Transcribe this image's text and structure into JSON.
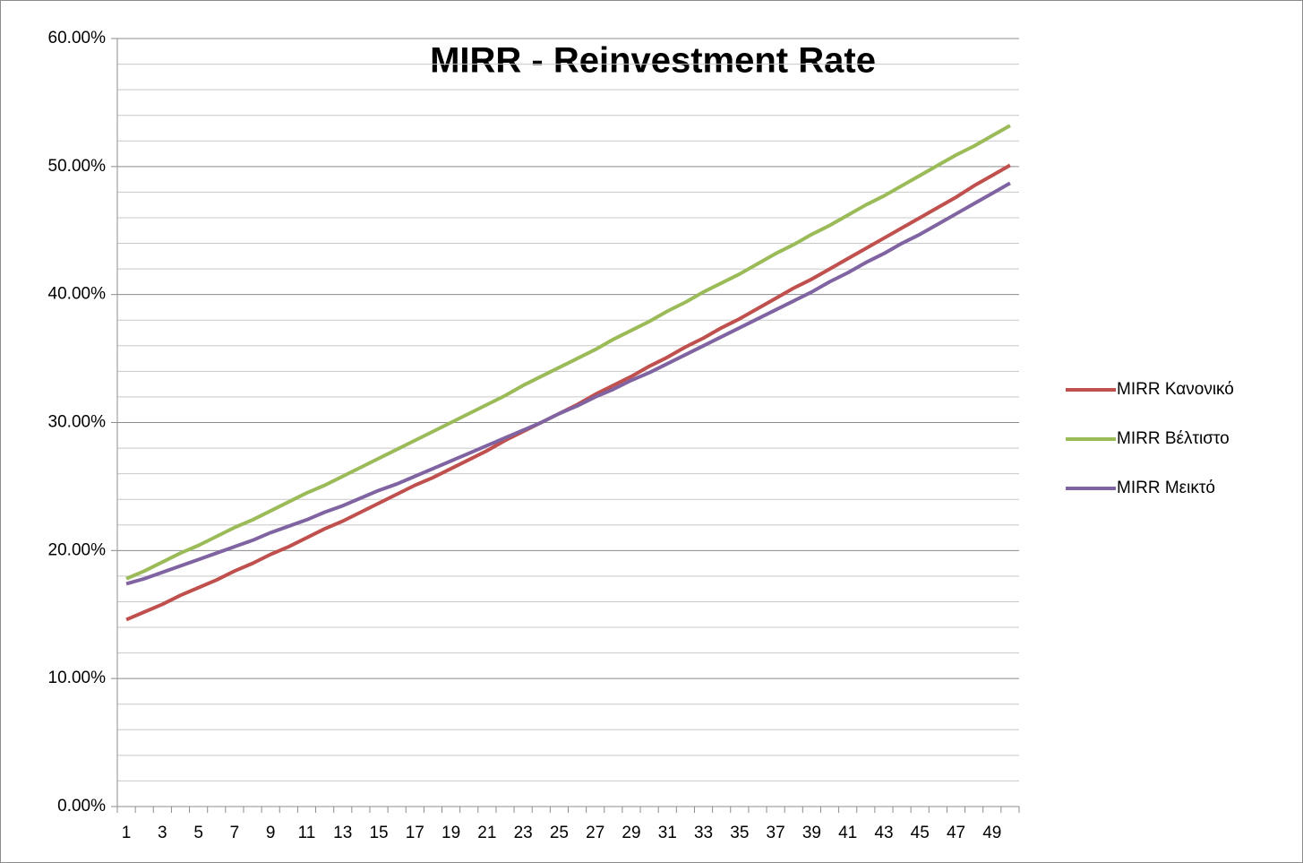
{
  "chart_data": {
    "type": "line",
    "title": "MIRR - Reinvestment Rate",
    "categories": [
      1,
      null,
      3,
      null,
      5,
      null,
      7,
      null,
      9,
      null,
      11,
      null,
      13,
      null,
      15,
      null,
      17,
      null,
      19,
      null,
      21,
      null,
      23,
      null,
      25,
      null,
      27,
      null,
      29,
      null,
      31,
      null,
      33,
      null,
      35,
      null,
      37,
      null,
      39,
      null,
      41,
      null,
      43,
      null,
      45,
      null,
      47,
      null,
      49,
      null
    ],
    "series": [
      {
        "name": "MIRR Κανονικό",
        "color": "#c0504d",
        "values": [
          14.6,
          15.2,
          15.8,
          16.5,
          17.1,
          17.7,
          18.4,
          19.0,
          19.7,
          20.3,
          21.0,
          21.7,
          22.3,
          23.0,
          23.7,
          24.4,
          25.1,
          25.7,
          26.4,
          27.1,
          27.8,
          28.6,
          29.3,
          30.0,
          30.7,
          31.4,
          32.2,
          32.9,
          33.6,
          34.4,
          35.1,
          35.9,
          36.6,
          37.4,
          38.1,
          38.9,
          39.7,
          40.5,
          41.2,
          42.0,
          42.8,
          43.6,
          44.4,
          45.2,
          46.0,
          46.8,
          47.6,
          48.5,
          49.3,
          50.1
        ]
      },
      {
        "name": "MIRR Βέλτιστο",
        "color": "#9bbb59",
        "values": [
          17.8,
          18.4,
          19.1,
          19.8,
          20.4,
          21.1,
          21.8,
          22.4,
          23.1,
          23.8,
          24.5,
          25.1,
          25.8,
          26.5,
          27.2,
          27.9,
          28.6,
          29.3,
          30.0,
          30.7,
          31.4,
          32.1,
          32.9,
          33.6,
          34.3,
          35.0,
          35.7,
          36.5,
          37.2,
          37.9,
          38.7,
          39.4,
          40.2,
          40.9,
          41.6,
          42.4,
          43.2,
          43.9,
          44.7,
          45.4,
          46.2,
          47.0,
          47.7,
          48.5,
          49.3,
          50.1,
          50.9,
          51.6,
          52.4,
          53.2
        ]
      },
      {
        "name": "MIRR Μεικτό",
        "color": "#8064a2",
        "values": [
          17.4,
          17.8,
          18.3,
          18.8,
          19.3,
          19.8,
          20.3,
          20.8,
          21.4,
          21.9,
          22.4,
          23.0,
          23.5,
          24.1,
          24.7,
          25.2,
          25.8,
          26.4,
          27.0,
          27.6,
          28.2,
          28.8,
          29.4,
          30.0,
          30.7,
          31.3,
          32.0,
          32.6,
          33.3,
          33.9,
          34.6,
          35.3,
          36.0,
          36.7,
          37.4,
          38.1,
          38.8,
          39.5,
          40.2,
          41.0,
          41.7,
          42.5,
          43.2,
          44.0,
          44.7,
          45.5,
          46.3,
          47.1,
          47.9,
          48.7
        ]
      }
    ],
    "ylim": [
      0,
      60
    ],
    "yticks": [
      {
        "value": 0,
        "label": "0.00%"
      },
      {
        "value": 10,
        "label": "10.00%"
      },
      {
        "value": 20,
        "label": "20.00%"
      },
      {
        "value": 30,
        "label": "30.00%"
      },
      {
        "value": 40,
        "label": "40.00%"
      },
      {
        "value": 50,
        "label": "50.00%"
      },
      {
        "value": 60,
        "label": "60.00%"
      }
    ],
    "yminorticks": [
      2,
      4,
      6,
      8,
      12,
      14,
      16,
      18,
      22,
      24,
      26,
      28,
      32,
      34,
      36,
      38,
      42,
      44,
      46,
      48,
      52,
      54,
      56,
      58
    ],
    "grid": true,
    "minor_grid": true,
    "legend": "right"
  }
}
